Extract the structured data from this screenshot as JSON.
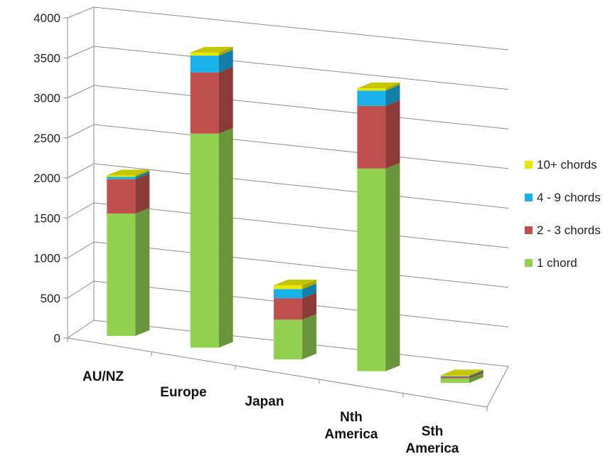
{
  "chart_data": {
    "type": "bar",
    "stacked": true,
    "three_d": true,
    "title": "",
    "xlabel": "",
    "ylabel": "",
    "categories": [
      "AU/NZ",
      "Europe",
      "Japan",
      "Nth America",
      "Sth America"
    ],
    "category_lines": [
      [
        "AU/NZ"
      ],
      [
        "Europe"
      ],
      [
        "Japan"
      ],
      [
        "Nth",
        "America"
      ],
      [
        "Sth",
        "America"
      ]
    ],
    "series": [
      {
        "name": "1 chord",
        "color": "#92d050",
        "values": [
          1600,
          2800,
          520,
          2650,
          60
        ]
      },
      {
        "name": "2 - 3 chords",
        "color": "#c0504d",
        "values": [
          450,
          800,
          280,
          820,
          20
        ]
      },
      {
        "name": "4 - 9 chords",
        "color": "#1ab1e8",
        "values": [
          30,
          220,
          120,
          200,
          10
        ]
      },
      {
        "name": "10+ chords",
        "color": "#e8e800",
        "values": [
          20,
          40,
          50,
          30,
          10
        ]
      }
    ],
    "yticks": [
      0,
      500,
      1000,
      1500,
      2000,
      2500,
      3000,
      3500,
      4000
    ],
    "ylim": [
      0,
      4000
    ],
    "grid": true,
    "legend_position": "right"
  }
}
